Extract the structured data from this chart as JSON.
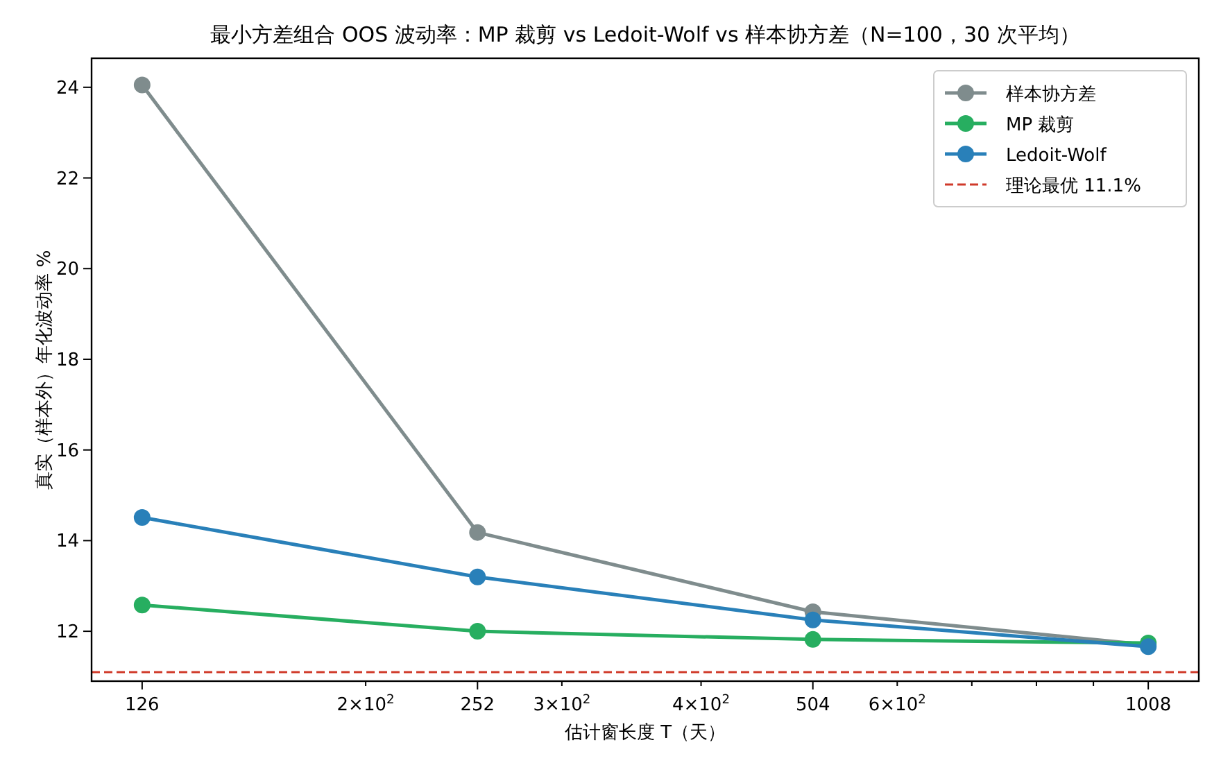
{
  "chart_data": {
    "type": "line",
    "title": "最小方差组合 OOS 波动率：MP 裁剪 vs Ledoit-Wolf vs 样本协方差（N=100，30 次平均）",
    "xlabel": "估计窗长度 T（天）",
    "ylabel": "真实（样本外）年化波动率 %",
    "x": [
      126,
      252,
      504,
      1008
    ],
    "series": [
      {
        "name": "样本协方差",
        "color": "#7f8c8d",
        "values": [
          24.05,
          14.18,
          12.43,
          11.7
        ]
      },
      {
        "name": "MP 裁剪",
        "color": "#27ae60",
        "values": [
          12.58,
          12.0,
          11.82,
          11.74
        ]
      },
      {
        "name": "Ledoit-Wolf",
        "color": "#2980b9",
        "values": [
          14.51,
          13.2,
          12.25,
          11.66
        ]
      }
    ],
    "ref_lines": [
      {
        "axis": "y",
        "value": 11.1,
        "label": "理论最优 11.1%",
        "color": "#d03a2a",
        "line_style": "dashed"
      }
    ],
    "log": "x",
    "xlim": [
      113.5,
      1119
    ],
    "ylim": [
      10.9,
      24.64
    ],
    "xticks": [
      126,
      {
        "value": 200,
        "label": "2×10$^{2}$"
      },
      252,
      {
        "value": 300,
        "label": "3×10$^{2}$"
      },
      {
        "value": 400,
        "label": "4×10$^{2}$"
      },
      504,
      {
        "value": 600,
        "label": "6×10$^{2}$"
      },
      {
        "value": 700,
        "label": null
      },
      {
        "value": 800,
        "label": null
      },
      {
        "value": 900,
        "label": null
      },
      1008
    ],
    "yticks": [
      12,
      14,
      16,
      18,
      20,
      22,
      24
    ],
    "marker": "circle",
    "line_style": "solid",
    "grid": false,
    "legend": "top right"
  }
}
